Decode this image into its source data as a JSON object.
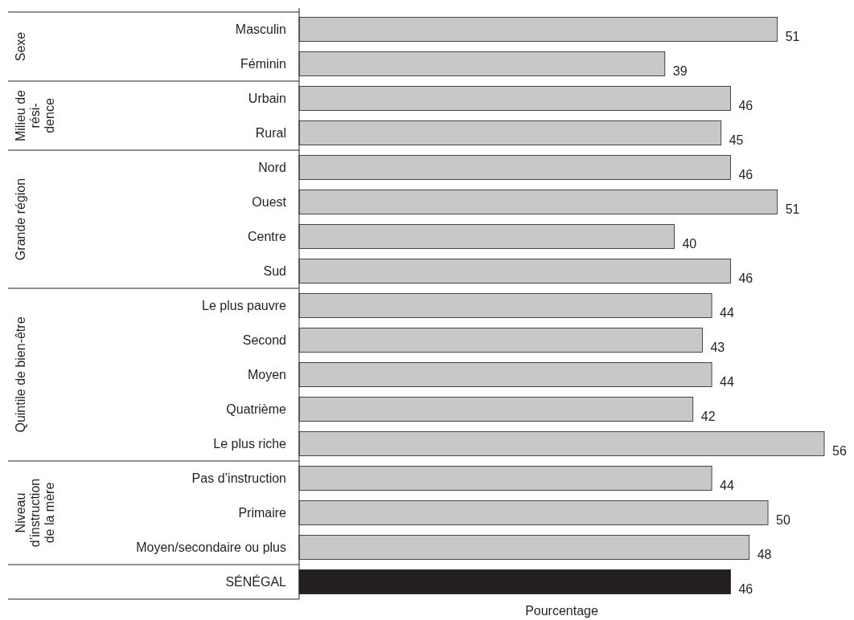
{
  "chart_data": {
    "type": "bar",
    "orientation": "horizontal",
    "relative": false,
    "data_labels": true,
    "xlabel": "Pourcentage",
    "categories": [
      "Masculin",
      "Féminin",
      "Urbain",
      "Rural",
      "Nord",
      "Ouest",
      "Centre",
      "Sud",
      "Le plus pauvre",
      "Second",
      "Moyen",
      "Quatrième",
      "Le plus riche",
      "Pas d’instruction",
      "Primaire",
      "Moyen/secondaire ou plus",
      "SÉNÉGAL"
    ],
    "values": [
      51,
      39,
      46,
      45,
      46,
      51,
      40,
      46,
      44,
      43,
      44,
      42,
      56,
      44,
      50,
      48,
      46
    ],
    "colors": [
      "#c8c8c8",
      "#c8c8c8",
      "#c8c8c8",
      "#c8c8c8",
      "#c8c8c8",
      "#c8c8c8",
      "#c8c8c8",
      "#c8c8c8",
      "#c8c8c8",
      "#c8c8c8",
      "#c8c8c8",
      "#c8c8c8",
      "#c8c8c8",
      "#c8c8c8",
      "#c8c8c8",
      "#c8c8c8",
      "#231f20"
    ],
    "annotations": [
      "Sexe",
      "Milieu de\nrési-\ndence",
      "Grande région",
      "Quintile de bien-être",
      "Niveau\nd’instruction\nde la mère"
    ]
  }
}
